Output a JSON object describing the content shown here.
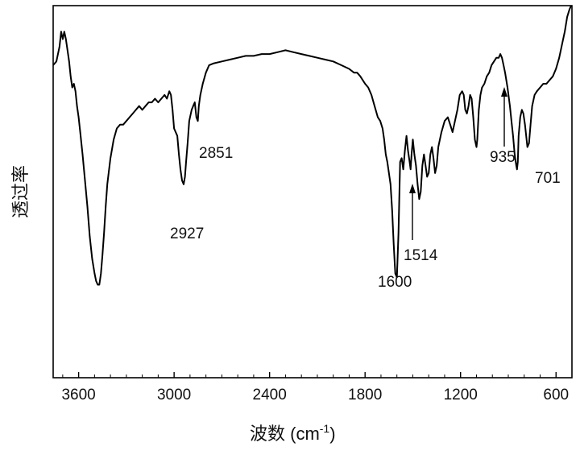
{
  "chart_data": {
    "type": "line",
    "title": "",
    "xlabel": "波数 (cm",
    "xlabel_sup": "-1",
    "xlabel_close": ")",
    "ylabel": "透过率",
    "xlim": [
      3760,
      500
    ],
    "ylim": [
      0,
      100
    ],
    "x_reversed": true,
    "y_ticks_shown": false,
    "grid": false,
    "xticks": [
      3600,
      3000,
      2400,
      1800,
      1200,
      600
    ],
    "xtick_labels": [
      "3600",
      "3000",
      "2400",
      "1800",
      "1200",
      "600"
    ],
    "series": [
      {
        "name": "",
        "points": [
          [
            3760,
            84
          ],
          [
            3740,
            85
          ],
          [
            3720,
            89
          ],
          [
            3710,
            93
          ],
          [
            3700,
            91
          ],
          [
            3690,
            93
          ],
          [
            3680,
            91
          ],
          [
            3670,
            88
          ],
          [
            3660,
            85
          ],
          [
            3650,
            81
          ],
          [
            3640,
            78
          ],
          [
            3630,
            79
          ],
          [
            3620,
            77
          ],
          [
            3610,
            73
          ],
          [
            3600,
            70
          ],
          [
            3590,
            66
          ],
          [
            3575,
            60
          ],
          [
            3560,
            53
          ],
          [
            3545,
            46
          ],
          [
            3530,
            38
          ],
          [
            3515,
            32
          ],
          [
            3500,
            28
          ],
          [
            3490,
            26
          ],
          [
            3480,
            25
          ],
          [
            3470,
            25
          ],
          [
            3460,
            28
          ],
          [
            3450,
            33
          ],
          [
            3440,
            39
          ],
          [
            3430,
            46
          ],
          [
            3420,
            52
          ],
          [
            3400,
            59
          ],
          [
            3380,
            64
          ],
          [
            3360,
            67
          ],
          [
            3340,
            68
          ],
          [
            3320,
            68
          ],
          [
            3300,
            69
          ],
          [
            3280,
            70
          ],
          [
            3260,
            71
          ],
          [
            3240,
            72
          ],
          [
            3220,
            73
          ],
          [
            3200,
            72
          ],
          [
            3180,
            73
          ],
          [
            3160,
            74
          ],
          [
            3140,
            74
          ],
          [
            3120,
            75
          ],
          [
            3100,
            74
          ],
          [
            3080,
            75
          ],
          [
            3060,
            76
          ],
          [
            3045,
            75
          ],
          [
            3030,
            77
          ],
          [
            3020,
            76
          ],
          [
            3010,
            72
          ],
          [
            3000,
            67
          ],
          [
            2990,
            66
          ],
          [
            2980,
            65
          ],
          [
            2970,
            60
          ],
          [
            2960,
            56
          ],
          [
            2950,
            53
          ],
          [
            2940,
            52
          ],
          [
            2932,
            54
          ],
          [
            2925,
            58
          ],
          [
            2915,
            63
          ],
          [
            2905,
            69
          ],
          [
            2890,
            72
          ],
          [
            2880,
            73
          ],
          [
            2870,
            74
          ],
          [
            2860,
            70
          ],
          [
            2851,
            69
          ],
          [
            2845,
            73
          ],
          [
            2835,
            76
          ],
          [
            2820,
            79
          ],
          [
            2800,
            82
          ],
          [
            2780,
            84
          ],
          [
            2750,
            84.5
          ],
          [
            2700,
            85
          ],
          [
            2650,
            85.5
          ],
          [
            2600,
            86
          ],
          [
            2550,
            86.5
          ],
          [
            2500,
            86.5
          ],
          [
            2450,
            87
          ],
          [
            2400,
            87
          ],
          [
            2350,
            87.5
          ],
          [
            2300,
            88
          ],
          [
            2250,
            87.5
          ],
          [
            2200,
            87
          ],
          [
            2150,
            86.5
          ],
          [
            2100,
            86
          ],
          [
            2050,
            85.5
          ],
          [
            2000,
            85
          ],
          [
            1950,
            84
          ],
          [
            1900,
            83
          ],
          [
            1870,
            82
          ],
          [
            1850,
            82
          ],
          [
            1830,
            81
          ],
          [
            1800,
            79
          ],
          [
            1780,
            78
          ],
          [
            1760,
            76
          ],
          [
            1740,
            73
          ],
          [
            1720,
            70
          ],
          [
            1705,
            69
          ],
          [
            1690,
            67
          ],
          [
            1680,
            64
          ],
          [
            1670,
            60
          ],
          [
            1660,
            58
          ],
          [
            1650,
            55
          ],
          [
            1640,
            52
          ],
          [
            1630,
            45
          ],
          [
            1620,
            36
          ],
          [
            1610,
            28
          ],
          [
            1600,
            27
          ],
          [
            1590,
            39
          ],
          [
            1580,
            58
          ],
          [
            1570,
            59
          ],
          [
            1560,
            56
          ],
          [
            1550,
            61
          ],
          [
            1540,
            65
          ],
          [
            1530,
            61
          ],
          [
            1520,
            58
          ],
          [
            1514,
            56
          ],
          [
            1508,
            60
          ],
          [
            1500,
            64
          ],
          [
            1490,
            60
          ],
          [
            1480,
            57
          ],
          [
            1470,
            52
          ],
          [
            1460,
            48
          ],
          [
            1450,
            50
          ],
          [
            1440,
            57
          ],
          [
            1430,
            60
          ],
          [
            1420,
            57
          ],
          [
            1410,
            54
          ],
          [
            1400,
            55
          ],
          [
            1390,
            60
          ],
          [
            1380,
            62
          ],
          [
            1370,
            59
          ],
          [
            1360,
            55
          ],
          [
            1350,
            57
          ],
          [
            1340,
            62
          ],
          [
            1320,
            66
          ],
          [
            1300,
            69
          ],
          [
            1280,
            70
          ],
          [
            1265,
            68
          ],
          [
            1250,
            66
          ],
          [
            1235,
            69
          ],
          [
            1220,
            72
          ],
          [
            1205,
            76
          ],
          [
            1190,
            77
          ],
          [
            1180,
            76
          ],
          [
            1170,
            72
          ],
          [
            1160,
            71
          ],
          [
            1150,
            73
          ],
          [
            1140,
            76
          ],
          [
            1130,
            75
          ],
          [
            1120,
            70
          ],
          [
            1110,
            64
          ],
          [
            1100,
            62
          ],
          [
            1095,
            64
          ],
          [
            1085,
            72
          ],
          [
            1075,
            76
          ],
          [
            1065,
            78
          ],
          [
            1050,
            79
          ],
          [
            1035,
            81
          ],
          [
            1020,
            82
          ],
          [
            1005,
            84
          ],
          [
            990,
            85
          ],
          [
            975,
            86
          ],
          [
            960,
            86
          ],
          [
            950,
            87
          ],
          [
            940,
            86
          ],
          [
            930,
            84
          ],
          [
            920,
            82
          ],
          [
            905,
            78
          ],
          [
            890,
            73
          ],
          [
            880,
            69
          ],
          [
            870,
            65
          ],
          [
            860,
            60
          ],
          [
            850,
            57
          ],
          [
            845,
            56
          ],
          [
            840,
            58
          ],
          [
            835,
            65
          ],
          [
            825,
            70
          ],
          [
            815,
            72
          ],
          [
            805,
            71
          ],
          [
            795,
            68
          ],
          [
            785,
            64
          ],
          [
            780,
            62
          ],
          [
            770,
            63
          ],
          [
            760,
            68
          ],
          [
            750,
            73
          ],
          [
            735,
            76
          ],
          [
            720,
            77
          ],
          [
            700,
            78
          ],
          [
            680,
            79
          ],
          [
            660,
            79
          ],
          [
            640,
            80
          ],
          [
            620,
            81
          ],
          [
            600,
            83
          ],
          [
            580,
            86
          ],
          [
            560,
            90
          ],
          [
            545,
            93
          ],
          [
            530,
            97
          ],
          [
            515,
            99
          ],
          [
            505,
            100
          ]
        ]
      }
    ],
    "annotations": [
      {
        "text": "2927",
        "x": 2927
      },
      {
        "text": "2851",
        "x": 2851
      },
      {
        "text": "1600",
        "x": 1600
      },
      {
        "text": "1514",
        "x": 1514
      },
      {
        "text": "935",
        "x": 935
      },
      {
        "text": "701",
        "x": 701
      }
    ]
  },
  "colors": {
    "line": "#000000",
    "axis": "#000000",
    "background": "#ffffff"
  }
}
